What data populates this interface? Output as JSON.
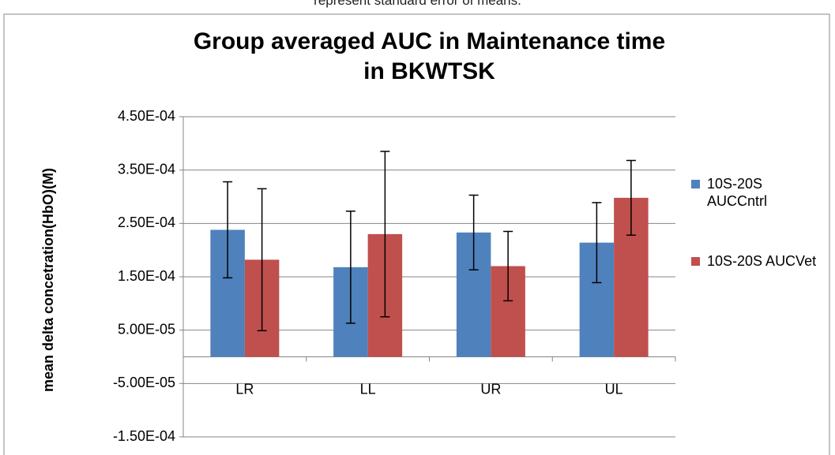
{
  "chart_data": {
    "type": "bar",
    "note": "represent standard error of means.",
    "title": "Group averaged AUC in Maintenance time in BKWTSK",
    "y_label": "mean delta concetration(HbO)(M)",
    "categories": [
      "LR",
      "LL",
      "UR",
      "UL"
    ],
    "series": [
      {
        "name": "10S-20S AUCCntrl",
        "color": "#4f81bd",
        "values": [
          0.000238,
          0.000168,
          0.000233,
          0.000214
        ],
        "errors": [
          9e-05,
          0.000105,
          7e-05,
          7.5e-05
        ]
      },
      {
        "name": "10S-20S AUCVet",
        "color": "#c0504d",
        "values": [
          0.000182,
          0.00023,
          0.00017,
          0.000298
        ],
        "errors": [
          0.000133,
          0.000155,
          6.5e-05,
          7e-05
        ]
      }
    ],
    "ylim": [
      -0.00015,
      0.00045
    ],
    "yticks": [
      {
        "value": -0.00015,
        "label": "-1.50E-04"
      },
      {
        "value": -5e-05,
        "label": "-5.00E-05"
      },
      {
        "value": 5e-05,
        "label": "5.00E-05"
      },
      {
        "value": 0.00015,
        "label": "1.50E-04"
      },
      {
        "value": 0.00025,
        "label": "2.50E-04"
      },
      {
        "value": 0.00035,
        "label": "3.50E-04"
      },
      {
        "value": 0.00045,
        "label": "4.50E-04"
      }
    ],
    "grid": true,
    "legend": "right"
  }
}
